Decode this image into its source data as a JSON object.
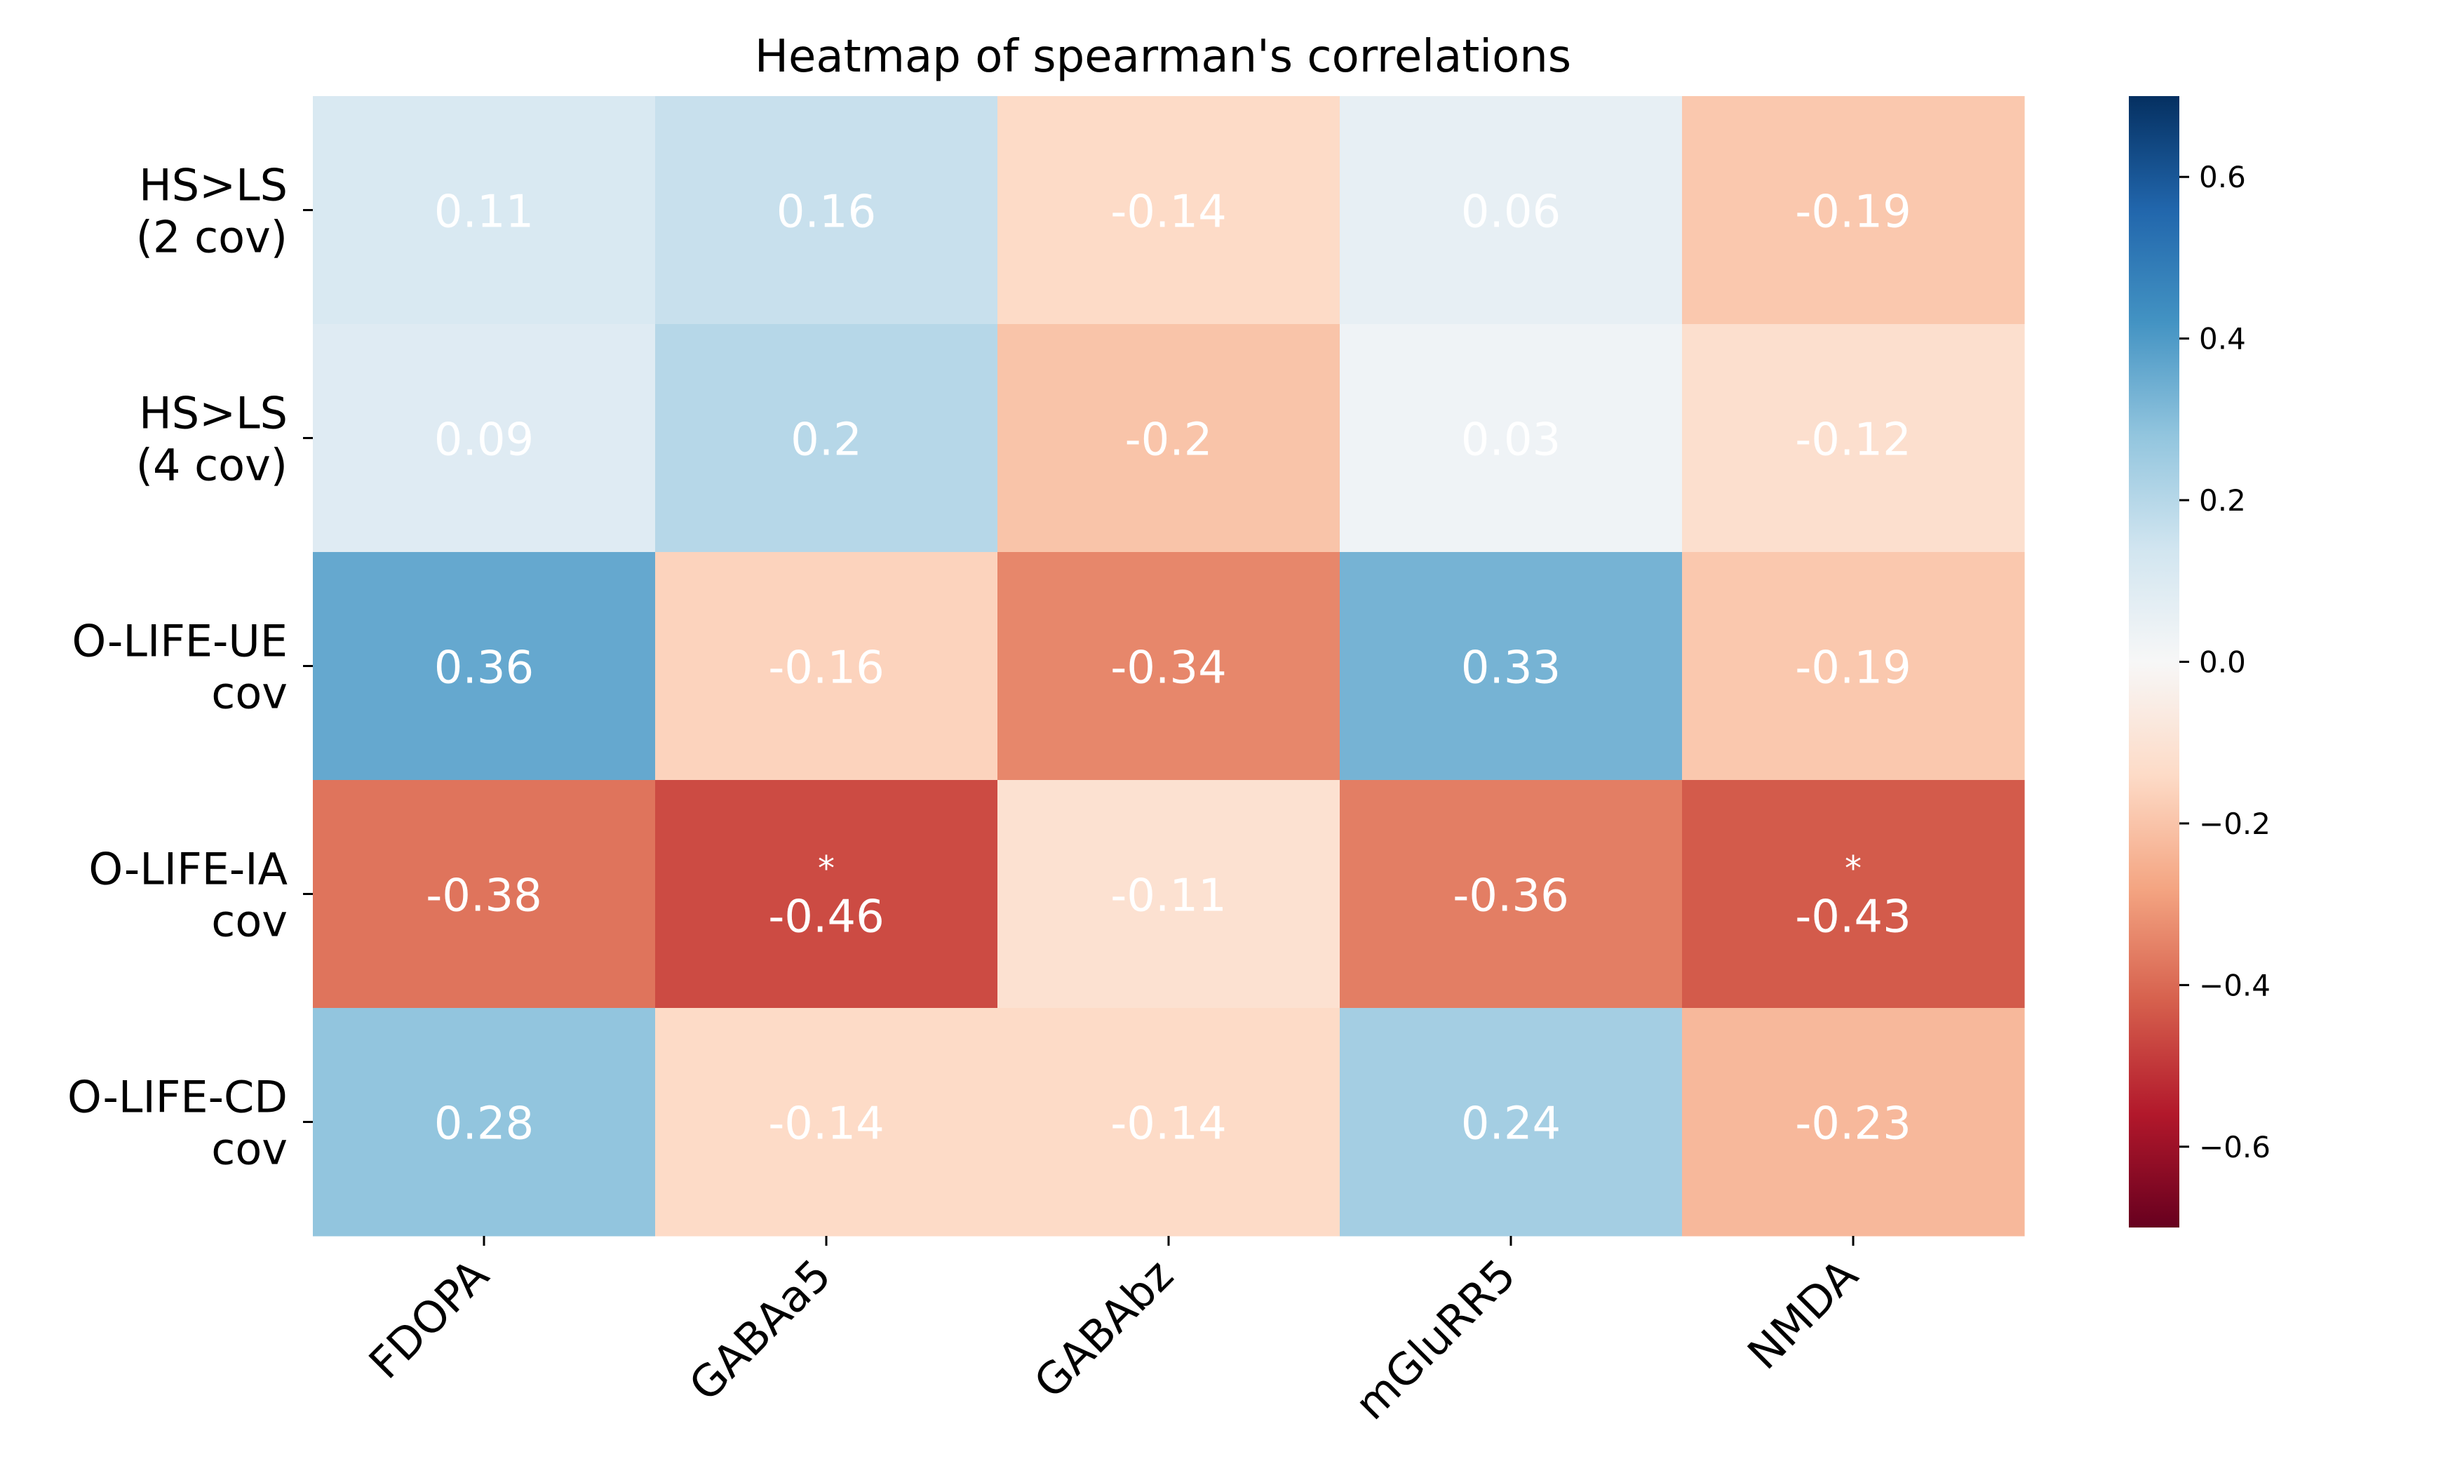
{
  "chart_data": {
    "type": "heatmap",
    "title": "Heatmap of spearman's correlations",
    "rows": [
      [
        "HS>LS",
        "(2 cov)"
      ],
      [
        "HS>LS",
        "(4 cov)"
      ],
      [
        "O-LIFE-UE",
        "cov"
      ],
      [
        "O-LIFE-IA",
        "cov"
      ],
      [
        "O-LIFE-CD",
        "cov"
      ]
    ],
    "columns": [
      "FDOPA",
      "GABAa5",
      "GABAbz",
      "mGluRR5",
      "NMDA"
    ],
    "values": [
      [
        0.11,
        0.16,
        -0.14,
        0.06,
        -0.19
      ],
      [
        0.09,
        0.2,
        -0.2,
        0.03,
        -0.12
      ],
      [
        0.36,
        -0.16,
        -0.34,
        0.33,
        -0.19
      ],
      [
        -0.38,
        -0.46,
        -0.11,
        -0.36,
        -0.43
      ],
      [
        0.28,
        -0.14,
        -0.14,
        0.24,
        -0.23
      ]
    ],
    "value_labels": [
      [
        "0.11",
        "0.16",
        "-0.14",
        "0.06",
        "-0.19"
      ],
      [
        "0.09",
        "0.2",
        "-0.2",
        "0.03",
        "-0.12"
      ],
      [
        "0.36",
        "-0.16",
        "-0.34",
        "0.33",
        "-0.19"
      ],
      [
        "-0.38",
        "-0.46",
        "-0.11",
        "-0.36",
        "-0.43"
      ],
      [
        "0.28",
        "-0.14",
        "-0.14",
        "0.24",
        "-0.23"
      ]
    ],
    "significance": [
      [
        "",
        "",
        "",
        "",
        ""
      ],
      [
        "",
        "",
        "",
        "",
        ""
      ],
      [
        "",
        "",
        "",
        "",
        ""
      ],
      [
        "",
        "*",
        "",
        "",
        "*"
      ],
      [
        "",
        "",
        "",
        "",
        ""
      ]
    ],
    "colormap": "RdBu",
    "vmin": -0.7,
    "vmax": 0.7,
    "colorbar_ticks": [
      0.6,
      0.4,
      0.2,
      0.0,
      -0.2,
      -0.4,
      -0.6
    ],
    "colorbar_tick_labels": [
      "0.6",
      "0.4",
      "0.2",
      "0.0",
      "−0.2",
      "−0.4",
      "−0.6"
    ]
  }
}
